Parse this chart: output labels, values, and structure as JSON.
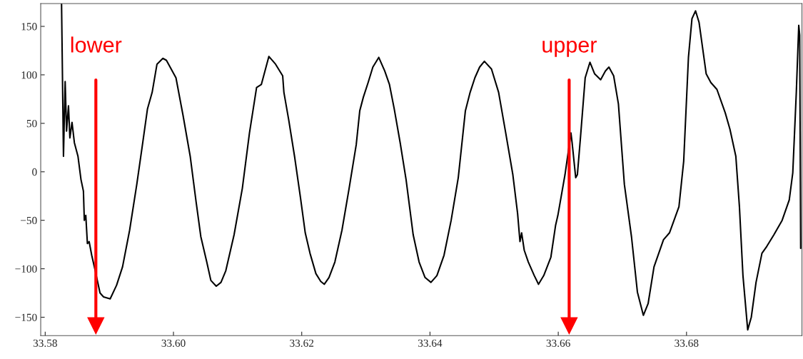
{
  "chart_data": {
    "type": "line",
    "x": [
      33.58255,
      33.58285,
      33.58311,
      33.58333,
      33.58363,
      33.58385,
      33.58418,
      33.58455,
      33.58511,
      33.58558,
      33.58596,
      33.5861,
      33.58633,
      33.58658,
      33.58685,
      33.58725,
      33.5878,
      33.58855,
      33.5891,
      33.59013,
      33.59113,
      33.59206,
      33.59317,
      33.59428,
      33.59521,
      33.59595,
      33.59668,
      33.59743,
      33.59835,
      33.5989,
      33.60039,
      33.6015,
      33.60261,
      33.60353,
      33.60427,
      33.60519,
      33.60583,
      33.60667,
      33.60741,
      33.60816,
      33.60945,
      33.61074,
      33.61185,
      33.61296,
      33.6137,
      33.61488,
      33.61592,
      33.61703,
      33.61722,
      33.61796,
      33.61888,
      33.61981,
      33.62055,
      33.62129,
      33.62221,
      33.62296,
      33.62351,
      33.62425,
      33.62517,
      33.62628,
      33.62739,
      33.6285,
      33.62905,
      33.62961,
      33.63035,
      33.63109,
      33.63201,
      33.63294,
      33.63368,
      33.63442,
      33.63535,
      33.63627,
      33.63738,
      33.6383,
      33.63923,
      33.64015,
      33.64108,
      33.64219,
      33.6433,
      33.64441,
      33.64552,
      33.64626,
      33.647,
      33.64774,
      33.64848,
      33.64959,
      33.6507,
      33.65181,
      33.65292,
      33.65366,
      33.65403,
      33.65429,
      33.6547,
      33.65533,
      33.65626,
      33.65692,
      33.65774,
      33.65885,
      33.65959,
      33.65994,
      33.66105,
      33.66198,
      33.66216,
      33.66272,
      33.66298,
      33.66346,
      33.6642,
      33.66494,
      33.66568,
      33.66661,
      33.66735,
      33.6679,
      33.66864,
      33.66938,
      33.67031,
      33.67142,
      33.67234,
      33.67327,
      33.67401,
      33.67493,
      33.67641,
      33.67734,
      33.67882,
      33.67956,
      33.6803,
      33.68085,
      33.68141,
      33.68196,
      33.68307,
      33.6838,
      33.68474,
      33.68603,
      33.68677,
      33.68769,
      33.68825,
      33.6888,
      33.68954,
      33.6901,
      33.69084,
      33.69176,
      33.69251,
      33.69362,
      33.69491,
      33.69602,
      33.69657,
      33.69712,
      33.6975,
      33.69765,
      33.6978
    ],
    "series": [
      {
        "color": "#000000",
        "values": [
          173,
          16,
          93,
          42,
          68,
          35,
          51,
          30,
          16,
          -8,
          -20,
          -50,
          -45,
          -74,
          -72,
          -86,
          -102,
          -125,
          -129,
          -131,
          -117,
          -98,
          -60,
          -13,
          30,
          65,
          82,
          111,
          117,
          115,
          97,
          58,
          16,
          -31,
          -67,
          -93,
          -112,
          -118,
          -114,
          -102,
          -65,
          -17,
          40,
          87,
          90,
          119,
          111,
          99,
          82,
          54,
          16,
          -27,
          -63,
          -84,
          -105,
          -113,
          -116,
          -109,
          -93,
          -60,
          -17,
          28,
          63,
          77,
          92,
          108,
          118,
          104,
          90,
          65,
          30,
          -8,
          -65,
          -93,
          -109,
          -114,
          -107,
          -86,
          -50,
          -6,
          63,
          82,
          97,
          108,
          114,
          106,
          82,
          40,
          -3,
          -43,
          -72,
          -63,
          -81,
          -93,
          -107,
          -116,
          -107,
          -88,
          -55,
          -45,
          -3,
          40,
          30,
          -6,
          -3,
          35,
          97,
          113,
          101,
          95,
          104,
          108,
          99,
          70,
          -13,
          -67,
          -124,
          -148,
          -136,
          -98,
          -70,
          -63,
          -36,
          11,
          118,
          158,
          166,
          154,
          101,
          92,
          85,
          61,
          44,
          16,
          -36,
          -107,
          -163,
          -150,
          -114,
          -84,
          -77,
          -65,
          -50,
          -29,
          -1,
          82,
          151,
          141,
          -79
        ]
      }
    ],
    "xlim": [
      33.5793,
      33.698
    ],
    "ylim": [
      -169,
      173.5
    ],
    "xticks": [
      {
        "value": 33.58,
        "label": "33.58"
      },
      {
        "value": 33.6,
        "label": "33.60"
      },
      {
        "value": 33.62,
        "label": "33.62"
      },
      {
        "value": 33.64,
        "label": "33.64"
      },
      {
        "value": 33.66,
        "label": "33.66"
      },
      {
        "value": 33.68,
        "label": "33.68"
      }
    ],
    "yticks": [
      {
        "value": -150,
        "label": "−150"
      },
      {
        "value": -100,
        "label": "−100"
      },
      {
        "value": -50,
        "label": "−50"
      },
      0,
      50,
      100,
      150
    ],
    "ref_lines": [
      {
        "axis": "x",
        "value": 33.5879,
        "label": "lower",
        "color": "#ff0000"
      },
      {
        "axis": "x",
        "value": 33.6617,
        "label": "upper",
        "color": "#ff0000"
      }
    ],
    "grid": false
  }
}
